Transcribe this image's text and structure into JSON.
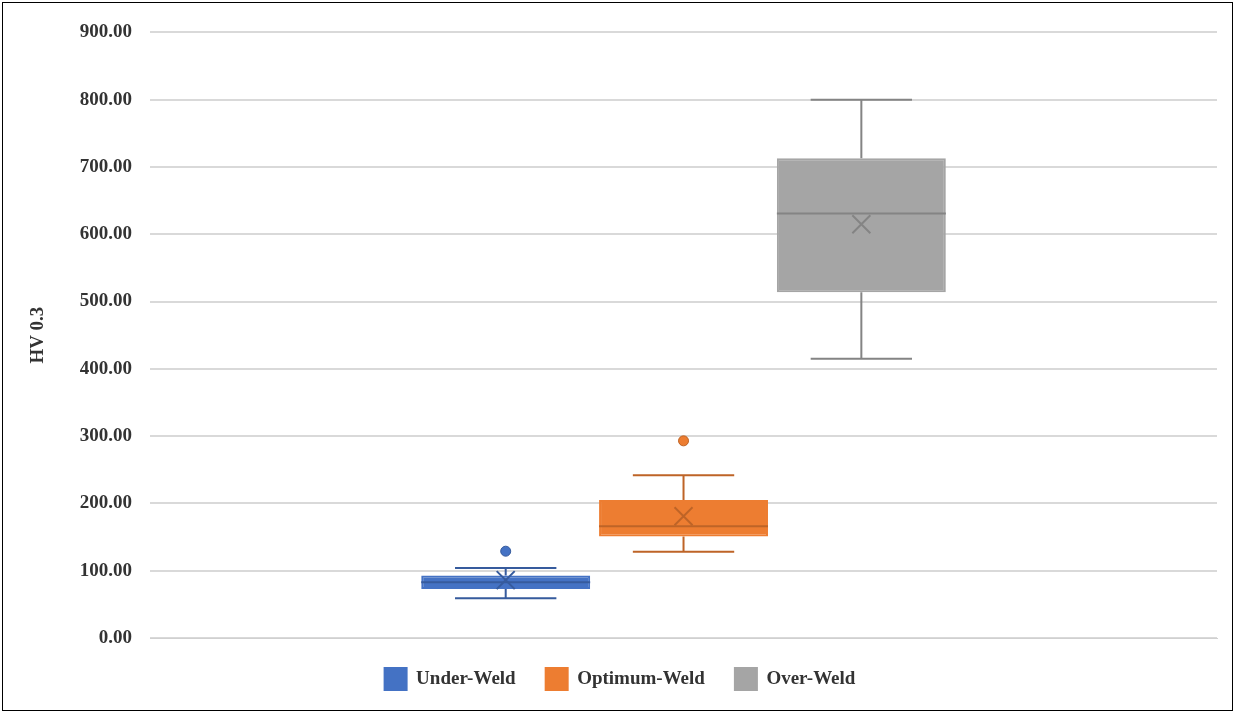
{
  "chart_data": {
    "type": "box",
    "ylabel": "HV 0.3",
    "categories": [
      null
    ],
    "series": [
      {
        "name": "Under-Weld",
        "color": "#4472c4",
        "boxes": [
          {
            "low": 59,
            "q1": 73,
            "median": 83,
            "q3": 93,
            "high": 104,
            "mean": 86,
            "outliers": [
              129
            ]
          }
        ]
      },
      {
        "name": "Optimum-Weld",
        "color": "#ed7d31",
        "boxes": [
          {
            "low": 128,
            "q1": 151,
            "median": 166,
            "q3": 205,
            "high": 242,
            "mean": 181,
            "outliers": [
              293
            ]
          }
        ]
      },
      {
        "name": "Over-Weld",
        "color": "#a5a5a5",
        "boxes": [
          {
            "low": 415,
            "q1": 514,
            "median": 631,
            "q3": 713,
            "high": 800,
            "mean": 615
          }
        ]
      }
    ],
    "ylim": [
      0,
      900
    ],
    "yticks": [
      {
        "value": 0,
        "label": "0.00"
      },
      {
        "value": 100,
        "label": "100.00"
      },
      {
        "value": 200,
        "label": "200.00"
      },
      {
        "value": 300,
        "label": "300.00"
      },
      {
        "value": 400,
        "label": "400.00"
      },
      {
        "value": 500,
        "label": "500.00"
      },
      {
        "value": 600,
        "label": "600.00"
      },
      {
        "value": 700,
        "label": "700.00"
      },
      {
        "value": 800,
        "label": "800.00"
      },
      {
        "value": 900,
        "label": "900.00"
      }
    ],
    "grid": "y",
    "legend": "bottom"
  }
}
